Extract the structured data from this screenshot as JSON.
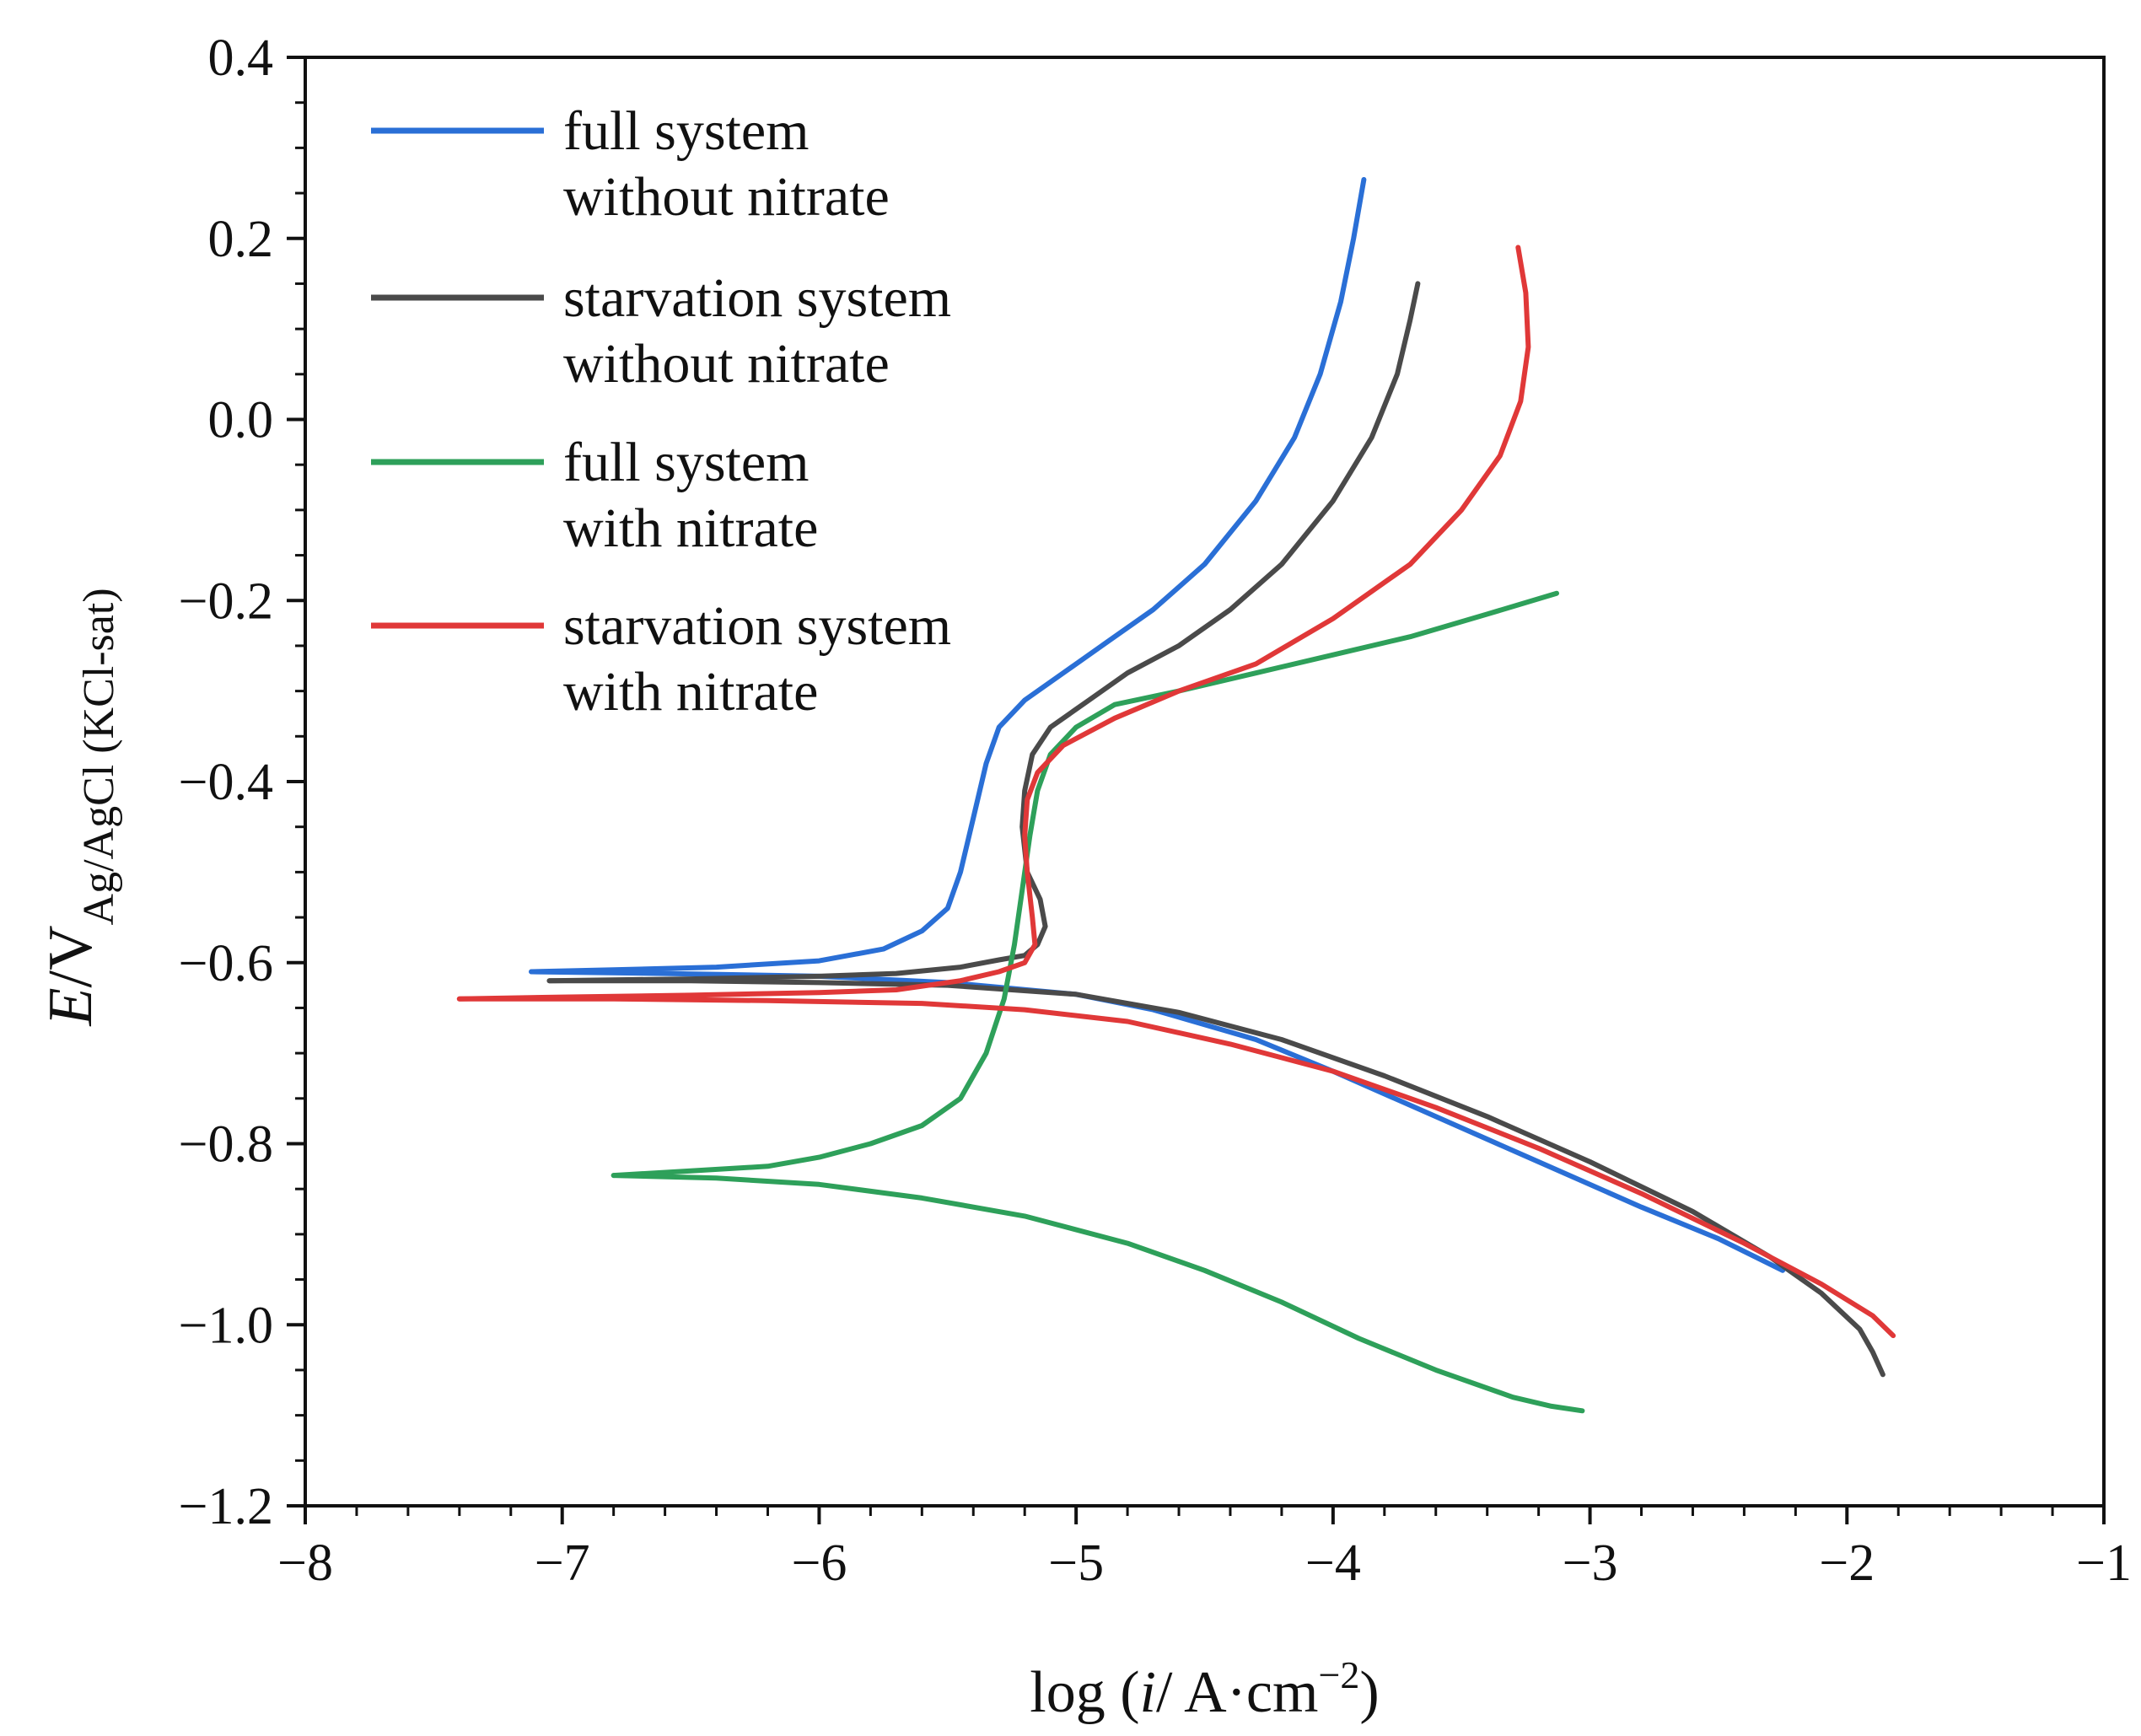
{
  "chart_data": {
    "type": "line",
    "title": "",
    "xlabel": {
      "prefix": "log (",
      "var": "i",
      "unit": "/ A·cm",
      "exp": "−2",
      "suffix": ")"
    },
    "ylabel": {
      "var": "E",
      "unit": "/V",
      "subscript": "Ag/AgCl (KCl-sat)"
    },
    "xlim": [
      -8,
      -1
    ],
    "ylim": [
      -1.2,
      0.4
    ],
    "x_ticks": [
      -8,
      -7,
      -6,
      -5,
      -4,
      -3,
      -2,
      -1
    ],
    "x_tick_labels": [
      "−8",
      "−7",
      "−6",
      "−5",
      "−4",
      "−3",
      "−2",
      "−1"
    ],
    "y_ticks": [
      0.4,
      0.2,
      0.0,
      -0.2,
      -0.4,
      -0.6,
      -0.8,
      -1.0,
      -1.2
    ],
    "y_tick_labels": [
      "0.4",
      "0.2",
      "0.0",
      "−0.2",
      "−0.4",
      "−0.6",
      "−0.8",
      "−1.0",
      "−1.2"
    ],
    "legend_position": "top-left",
    "series": [
      {
        "name": "full system without nitrate",
        "legend_lines": [
          "full system",
          "without nitrate"
        ],
        "color": "#2a6fd6",
        "anodic": [
          [
            -7.12,
            -0.61
          ],
          [
            -6.8,
            -0.608
          ],
          [
            -6.4,
            -0.605
          ],
          [
            -6.0,
            -0.598
          ],
          [
            -5.75,
            -0.585
          ],
          [
            -5.6,
            -0.565
          ],
          [
            -5.5,
            -0.54
          ],
          [
            -5.45,
            -0.5
          ],
          [
            -5.4,
            -0.44
          ],
          [
            -5.35,
            -0.38
          ],
          [
            -5.3,
            -0.34
          ],
          [
            -5.2,
            -0.31
          ],
          [
            -5.05,
            -0.28
          ],
          [
            -4.9,
            -0.25
          ],
          [
            -4.7,
            -0.21
          ],
          [
            -4.5,
            -0.16
          ],
          [
            -4.3,
            -0.09
          ],
          [
            -4.15,
            -0.02
          ],
          [
            -4.05,
            0.05
          ],
          [
            -3.97,
            0.13
          ],
          [
            -3.92,
            0.2
          ],
          [
            -3.88,
            0.265
          ]
        ],
        "cathodic": [
          [
            -7.12,
            -0.61
          ],
          [
            -6.6,
            -0.612
          ],
          [
            -6.0,
            -0.615
          ],
          [
            -5.5,
            -0.622
          ],
          [
            -5.0,
            -0.635
          ],
          [
            -4.7,
            -0.652
          ],
          [
            -4.3,
            -0.685
          ],
          [
            -4.0,
            -0.72
          ],
          [
            -3.6,
            -0.77
          ],
          [
            -3.2,
            -0.82
          ],
          [
            -2.8,
            -0.87
          ],
          [
            -2.5,
            -0.905
          ],
          [
            -2.25,
            -0.94
          ]
        ]
      },
      {
        "name": "starvation system without nitrate",
        "legend_lines": [
          "starvation system",
          "without nitrate"
        ],
        "color": "#4a4a4a",
        "anodic": [
          [
            -7.05,
            -0.62
          ],
          [
            -6.5,
            -0.618
          ],
          [
            -6.0,
            -0.615
          ],
          [
            -5.7,
            -0.612
          ],
          [
            -5.45,
            -0.605
          ],
          [
            -5.3,
            -0.597
          ],
          [
            -5.2,
            -0.592
          ],
          [
            -5.15,
            -0.58
          ],
          [
            -5.12,
            -0.56
          ],
          [
            -5.14,
            -0.53
          ],
          [
            -5.19,
            -0.5
          ],
          [
            -5.21,
            -0.45
          ],
          [
            -5.2,
            -0.41
          ],
          [
            -5.17,
            -0.37
          ],
          [
            -5.1,
            -0.34
          ],
          [
            -4.95,
            -0.31
          ],
          [
            -4.8,
            -0.28
          ],
          [
            -4.6,
            -0.25
          ],
          [
            -4.4,
            -0.21
          ],
          [
            -4.2,
            -0.16
          ],
          [
            -4.0,
            -0.09
          ],
          [
            -3.85,
            -0.02
          ],
          [
            -3.75,
            0.05
          ],
          [
            -3.7,
            0.11
          ],
          [
            -3.67,
            0.15
          ]
        ],
        "cathodic": [
          [
            -7.05,
            -0.62
          ],
          [
            -6.5,
            -0.62
          ],
          [
            -6.0,
            -0.622
          ],
          [
            -5.5,
            -0.625
          ],
          [
            -5.0,
            -0.635
          ],
          [
            -4.6,
            -0.655
          ],
          [
            -4.2,
            -0.685
          ],
          [
            -3.8,
            -0.725
          ],
          [
            -3.4,
            -0.77
          ],
          [
            -3.0,
            -0.82
          ],
          [
            -2.6,
            -0.875
          ],
          [
            -2.3,
            -0.925
          ],
          [
            -2.1,
            -0.965
          ],
          [
            -1.95,
            -1.005
          ],
          [
            -1.9,
            -1.03
          ],
          [
            -1.86,
            -1.055
          ]
        ]
      },
      {
        "name": "full system with nitrate",
        "legend_lines": [
          "full system",
          "with nitrate"
        ],
        "color": "#2ea05a",
        "anodic": [
          [
            -6.8,
            -0.835
          ],
          [
            -6.5,
            -0.83
          ],
          [
            -6.2,
            -0.825
          ],
          [
            -6.0,
            -0.815
          ],
          [
            -5.8,
            -0.8
          ],
          [
            -5.6,
            -0.78
          ],
          [
            -5.45,
            -0.75
          ],
          [
            -5.35,
            -0.7
          ],
          [
            -5.28,
            -0.64
          ],
          [
            -5.24,
            -0.58
          ],
          [
            -5.21,
            -0.52
          ],
          [
            -5.18,
            -0.46
          ],
          [
            -5.15,
            -0.41
          ],
          [
            -5.1,
            -0.37
          ],
          [
            -5.0,
            -0.34
          ],
          [
            -4.85,
            -0.315
          ],
          [
            -4.6,
            -0.3
          ],
          [
            -4.3,
            -0.28
          ],
          [
            -4.0,
            -0.26
          ],
          [
            -3.7,
            -0.24
          ],
          [
            -3.4,
            -0.215
          ],
          [
            -3.13,
            -0.192
          ]
        ],
        "cathodic": [
          [
            -6.8,
            -0.835
          ],
          [
            -6.4,
            -0.838
          ],
          [
            -6.0,
            -0.845
          ],
          [
            -5.6,
            -0.86
          ],
          [
            -5.2,
            -0.88
          ],
          [
            -4.8,
            -0.91
          ],
          [
            -4.5,
            -0.94
          ],
          [
            -4.2,
            -0.975
          ],
          [
            -3.9,
            -1.015
          ],
          [
            -3.6,
            -1.05
          ],
          [
            -3.3,
            -1.08
          ],
          [
            -3.15,
            -1.09
          ],
          [
            -3.03,
            -1.095
          ]
        ]
      },
      {
        "name": "starvation system with nitrate",
        "legend_lines": [
          "starvation system",
          "with nitrate"
        ],
        "color": "#e03838",
        "anodic": [
          [
            -7.4,
            -0.64
          ],
          [
            -7.0,
            -0.638
          ],
          [
            -6.5,
            -0.636
          ],
          [
            -6.0,
            -0.633
          ],
          [
            -5.7,
            -0.63
          ],
          [
            -5.45,
            -0.62
          ],
          [
            -5.3,
            -0.61
          ],
          [
            -5.2,
            -0.6
          ],
          [
            -5.16,
            -0.58
          ],
          [
            -5.17,
            -0.55
          ],
          [
            -5.19,
            -0.5
          ],
          [
            -5.2,
            -0.46
          ],
          [
            -5.19,
            -0.42
          ],
          [
            -5.15,
            -0.39
          ],
          [
            -5.05,
            -0.36
          ],
          [
            -4.85,
            -0.33
          ],
          [
            -4.6,
            -0.3
          ],
          [
            -4.3,
            -0.27
          ],
          [
            -4.0,
            -0.22
          ],
          [
            -3.7,
            -0.16
          ],
          [
            -3.5,
            -0.1
          ],
          [
            -3.35,
            -0.04
          ],
          [
            -3.27,
            0.02
          ],
          [
            -3.24,
            0.08
          ],
          [
            -3.25,
            0.14
          ],
          [
            -3.28,
            0.19
          ]
        ],
        "cathodic": [
          [
            -7.4,
            -0.64
          ],
          [
            -6.8,
            -0.64
          ],
          [
            -6.2,
            -0.642
          ],
          [
            -5.6,
            -0.645
          ],
          [
            -5.2,
            -0.652
          ],
          [
            -4.8,
            -0.665
          ],
          [
            -4.4,
            -0.69
          ],
          [
            -4.0,
            -0.72
          ],
          [
            -3.6,
            -0.76
          ],
          [
            -3.2,
            -0.805
          ],
          [
            -2.8,
            -0.855
          ],
          [
            -2.4,
            -0.91
          ],
          [
            -2.1,
            -0.955
          ],
          [
            -1.9,
            -0.99
          ],
          [
            -1.82,
            -1.012
          ]
        ]
      }
    ]
  }
}
